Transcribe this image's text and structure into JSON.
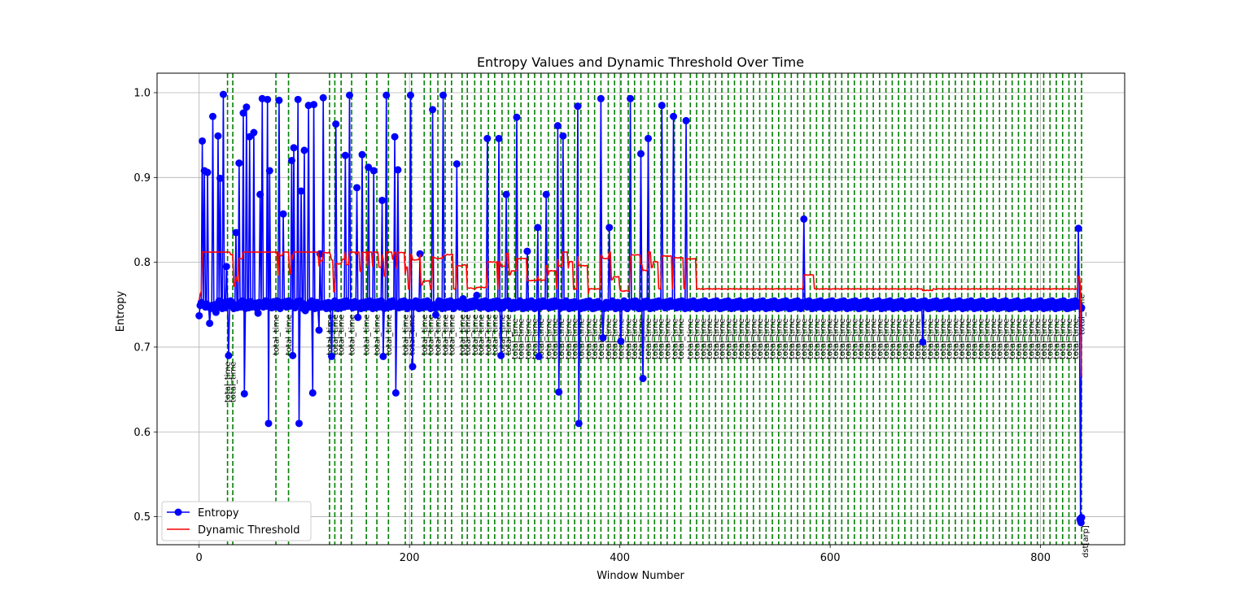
{
  "chart_data": {
    "type": "line",
    "title": "Entropy Values and Dynamic Threshold Over Time",
    "xlabel": "Window Number",
    "ylabel": "Entropy",
    "xlim": [
      -40,
      880
    ],
    "ylim": [
      0.467,
      1.023
    ],
    "xticks": [
      0,
      200,
      400,
      600,
      800
    ],
    "yticks": [
      0.5,
      0.6,
      0.7,
      0.8,
      0.9,
      1.0
    ],
    "grid": true,
    "legend": {
      "placement": "lower-left",
      "entries": [
        "Entropy",
        "Dynamic Threshold"
      ]
    },
    "colors": {
      "entropy": "#0000ff",
      "threshold": "#ff0000",
      "marker_lines": "#008000",
      "grid": "#b0b0b0"
    },
    "marker_line_label": "total_time",
    "final_marker_label": "dst[arp]",
    "baseline": 0.75,
    "entropy_spikes": [
      [
        0,
        0.737
      ],
      [
        3,
        0.943
      ],
      [
        5,
        0.908
      ],
      [
        8,
        0.906
      ],
      [
        10,
        0.728
      ],
      [
        13,
        0.972
      ],
      [
        16,
        0.741
      ],
      [
        18,
        0.949
      ],
      [
        20,
        0.899
      ],
      [
        23,
        0.998
      ],
      [
        26,
        0.795
      ],
      [
        28,
        0.69
      ],
      [
        35,
        0.835
      ],
      [
        38,
        0.917
      ],
      [
        42,
        0.976
      ],
      [
        43,
        0.645
      ],
      [
        45,
        0.983
      ],
      [
        48,
        0.948
      ],
      [
        52,
        0.953
      ],
      [
        56,
        0.74
      ],
      [
        58,
        0.88
      ],
      [
        60,
        0.993
      ],
      [
        65,
        0.992
      ],
      [
        66,
        0.61
      ],
      [
        67,
        0.908
      ],
      [
        76,
        0.991
      ],
      [
        80,
        0.857
      ],
      [
        88,
        0.92
      ],
      [
        89,
        0.69
      ],
      [
        90,
        0.935
      ],
      [
        94,
        0.992
      ],
      [
        95,
        0.61
      ],
      [
        97,
        0.884
      ],
      [
        100,
        0.932
      ],
      [
        101,
        0.743
      ],
      [
        104,
        0.985
      ],
      [
        108,
        0.646
      ],
      [
        109,
        0.986
      ],
      [
        114,
        0.72
      ],
      [
        115,
        0.81
      ],
      [
        118,
        0.994
      ],
      [
        126,
        0.689
      ],
      [
        130,
        0.963
      ],
      [
        139,
        0.926
      ],
      [
        143,
        0.997
      ],
      [
        150,
        0.888
      ],
      [
        151,
        0.735
      ],
      [
        155,
        0.927
      ],
      [
        161,
        0.912
      ],
      [
        166,
        0.908
      ],
      [
        174,
        0.873
      ],
      [
        175,
        0.689
      ],
      [
        178,
        0.997
      ],
      [
        186,
        0.948
      ],
      [
        187,
        0.646
      ],
      [
        189,
        0.909
      ],
      [
        201,
        0.997
      ],
      [
        203,
        0.677
      ],
      [
        210,
        0.81
      ],
      [
        222,
        0.98
      ],
      [
        225,
        0.738
      ],
      [
        232,
        0.997
      ],
      [
        245,
        0.916
      ],
      [
        251,
        0.757
      ],
      [
        264,
        0.761
      ],
      [
        274,
        0.946
      ],
      [
        285,
        0.946
      ],
      [
        287,
        0.69
      ],
      [
        292,
        0.88
      ],
      [
        302,
        0.971
      ],
      [
        312,
        0.813
      ],
      [
        322,
        0.841
      ],
      [
        323,
        0.689
      ],
      [
        330,
        0.88
      ],
      [
        341,
        0.961
      ],
      [
        342,
        0.647
      ],
      [
        346,
        0.949
      ],
      [
        360,
        0.984
      ],
      [
        361,
        0.61
      ],
      [
        382,
        0.993
      ],
      [
        384,
        0.711
      ],
      [
        390,
        0.841
      ],
      [
        401,
        0.707
      ],
      [
        410,
        0.993
      ],
      [
        420,
        0.928
      ],
      [
        422,
        0.663
      ],
      [
        427,
        0.946
      ],
      [
        440,
        0.985
      ],
      [
        451,
        0.972
      ],
      [
        463,
        0.967
      ],
      [
        575,
        0.851
      ],
      [
        688,
        0.706
      ],
      [
        836,
        0.84
      ],
      [
        838,
        0.495
      ]
    ],
    "marker_lines_x": [
      27,
      32,
      73,
      85,
      124,
      129,
      135,
      145,
      159,
      169,
      180,
      196,
      202,
      214,
      220,
      227,
      234,
      240,
      250,
      255,
      262,
      268,
      275,
      281,
      288,
      294,
      300,
      306,
      313,
      319,
      325,
      332,
      338,
      344,
      351,
      357,
      363,
      370,
      376,
      382,
      389,
      395,
      401,
      408,
      414,
      420,
      427,
      433,
      439,
      445,
      452,
      458,
      467,
      473,
      479,
      485,
      491,
      497,
      503,
      509,
      515,
      521,
      527,
      533,
      539,
      545,
      551,
      557,
      563,
      569,
      575,
      581,
      587,
      593,
      599,
      605,
      611,
      617,
      623,
      629,
      635,
      641,
      647,
      653,
      659,
      665,
      671,
      677,
      683,
      689,
      695,
      701,
      707,
      713,
      719,
      725,
      731,
      737,
      743,
      749,
      755,
      761,
      767,
      773,
      779,
      785,
      791,
      797,
      803,
      809,
      815,
      821,
      827,
      833,
      839
    ]
  }
}
